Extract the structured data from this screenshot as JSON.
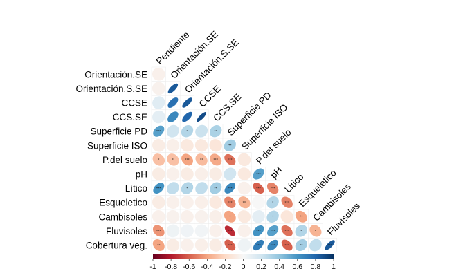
{
  "chart_data": {
    "type": "heatmap",
    "style": "correlation-ellipse-lower-triangle",
    "variables": [
      "Pendiente",
      "Orientación.SE",
      "Orientación.S.SE",
      "CCSE",
      "CCS.SE",
      "Superficie PD",
      "Superficie ISO",
      "P.del suelo",
      "pH",
      "Lítico",
      "Esqueletico",
      "Cambisoles",
      "Fluvisoles",
      "Cobertura veg."
    ],
    "cells": [
      {
        "row": "Orientación.SE",
        "col": "Pendiente",
        "r": -0.05,
        "sig": ""
      },
      {
        "row": "Orientación.S.SE",
        "col": "Pendiente",
        "r": -0.04,
        "sig": ""
      },
      {
        "row": "Orientación.S.SE",
        "col": "Orientación.SE",
        "r": 0.85,
        "sig": ""
      },
      {
        "row": "CCSE",
        "col": "Pendiente",
        "r": 0.12,
        "sig": ""
      },
      {
        "row": "CCSE",
        "col": "Orientación.SE",
        "r": 0.75,
        "sig": ""
      },
      {
        "row": "CCSE",
        "col": "Orientación.S.SE",
        "r": 0.85,
        "sig": ""
      },
      {
        "row": "CCS.SE",
        "col": "Pendiente",
        "r": 0.1,
        "sig": ""
      },
      {
        "row": "CCS.SE",
        "col": "Orientación.SE",
        "r": 0.65,
        "sig": ""
      },
      {
        "row": "CCS.SE",
        "col": "Orientación.S.SE",
        "r": 0.8,
        "sig": ""
      },
      {
        "row": "CCS.SE",
        "col": "CCSE",
        "r": 0.9,
        "sig": ""
      },
      {
        "row": "Superficie PD",
        "col": "Pendiente",
        "r": 0.55,
        "sig": "***"
      },
      {
        "row": "Superficie PD",
        "col": "Orientación.SE",
        "r": 0.2,
        "sig": ""
      },
      {
        "row": "Superficie PD",
        "col": "Orientación.S.SE",
        "r": 0.3,
        "sig": "*"
      },
      {
        "row": "Superficie PD",
        "col": "CCSE",
        "r": 0.22,
        "sig": ""
      },
      {
        "row": "Superficie PD",
        "col": "CCS.SE",
        "r": 0.32,
        "sig": "**"
      },
      {
        "row": "Superficie ISO",
        "col": "Pendiente",
        "r": -0.08,
        "sig": ""
      },
      {
        "row": "Superficie ISO",
        "col": "Orientación.SE",
        "r": -0.06,
        "sig": ""
      },
      {
        "row": "Superficie ISO",
        "col": "Orientación.S.SE",
        "r": -0.1,
        "sig": ""
      },
      {
        "row": "Superficie ISO",
        "col": "CCSE",
        "r": -0.1,
        "sig": ""
      },
      {
        "row": "Superficie ISO",
        "col": "CCS.SE",
        "r": -0.12,
        "sig": ""
      },
      {
        "row": "Superficie ISO",
        "col": "Superficie PD",
        "r": 0.35,
        "sig": "**"
      },
      {
        "row": "P.del suelo",
        "col": "Pendiente",
        "r": -0.3,
        "sig": "*"
      },
      {
        "row": "P.del suelo",
        "col": "Orientación.SE",
        "r": -0.3,
        "sig": "*"
      },
      {
        "row": "P.del suelo",
        "col": "Orientación.S.SE",
        "r": -0.4,
        "sig": "***"
      },
      {
        "row": "P.del suelo",
        "col": "CCSE",
        "r": -0.32,
        "sig": "**"
      },
      {
        "row": "P.del suelo",
        "col": "CCS.SE",
        "r": -0.38,
        "sig": "***"
      },
      {
        "row": "P.del suelo",
        "col": "Superficie PD",
        "r": -0.55,
        "sig": "***"
      },
      {
        "row": "P.del suelo",
        "col": "Superficie ISO",
        "r": -0.1,
        "sig": ""
      },
      {
        "row": "pH",
        "col": "Pendiente",
        "r": -0.08,
        "sig": ""
      },
      {
        "row": "pH",
        "col": "Orientación.SE",
        "r": -0.05,
        "sig": ""
      },
      {
        "row": "pH",
        "col": "Orientación.S.SE",
        "r": -0.08,
        "sig": ""
      },
      {
        "row": "pH",
        "col": "CCSE",
        "r": -0.06,
        "sig": ""
      },
      {
        "row": "pH",
        "col": "CCS.SE",
        "r": -0.08,
        "sig": ""
      },
      {
        "row": "pH",
        "col": "Superficie PD",
        "r": 0.2,
        "sig": ""
      },
      {
        "row": "pH",
        "col": "Superficie ISO",
        "r": -0.1,
        "sig": ""
      },
      {
        "row": "pH",
        "col": "P.del suelo",
        "r": 0.55,
        "sig": "***"
      },
      {
        "row": "Lítico",
        "col": "Pendiente",
        "r": 0.6,
        "sig": "***"
      },
      {
        "row": "Lítico",
        "col": "Orientación.SE",
        "r": 0.25,
        "sig": ""
      },
      {
        "row": "Lítico",
        "col": "Orientación.S.SE",
        "r": 0.3,
        "sig": "*"
      },
      {
        "row": "Lítico",
        "col": "CCSE",
        "r": 0.25,
        "sig": ""
      },
      {
        "row": "Lítico",
        "col": "CCS.SE",
        "r": 0.35,
        "sig": "**"
      },
      {
        "row": "Lítico",
        "col": "Superficie PD",
        "r": 0.65,
        "sig": "***"
      },
      {
        "row": "Lítico",
        "col": "Superficie ISO",
        "r": -0.05,
        "sig": ""
      },
      {
        "row": "Lítico",
        "col": "P.del suelo",
        "r": -0.6,
        "sig": "***"
      },
      {
        "row": "Lítico",
        "col": "pH",
        "r": -0.5,
        "sig": "***"
      },
      {
        "row": "Esqueletico",
        "col": "Pendiente",
        "r": -0.08,
        "sig": ""
      },
      {
        "row": "Esqueletico",
        "col": "Orientación.SE",
        "r": -0.05,
        "sig": ""
      },
      {
        "row": "Esqueletico",
        "col": "Orientación.S.SE",
        "r": -0.05,
        "sig": ""
      },
      {
        "row": "Esqueletico",
        "col": "CCSE",
        "r": -0.06,
        "sig": ""
      },
      {
        "row": "Esqueletico",
        "col": "CCS.SE",
        "r": -0.1,
        "sig": ""
      },
      {
        "row": "Esqueletico",
        "col": "Superficie PD",
        "r": -0.5,
        "sig": "***"
      },
      {
        "row": "Esqueletico",
        "col": "Superficie ISO",
        "r": -0.35,
        "sig": "**"
      },
      {
        "row": "Esqueletico",
        "col": "P.del suelo",
        "r": 0.0,
        "sig": ""
      },
      {
        "row": "Esqueletico",
        "col": "pH",
        "r": 0.3,
        "sig": "*"
      },
      {
        "row": "Esqueletico",
        "col": "Lítico",
        "r": -0.5,
        "sig": "***"
      },
      {
        "row": "Cambisoles",
        "col": "Pendiente",
        "r": -0.05,
        "sig": ""
      },
      {
        "row": "Cambisoles",
        "col": "Orientación.SE",
        "r": -0.04,
        "sig": ""
      },
      {
        "row": "Cambisoles",
        "col": "Orientación.S.SE",
        "r": -0.05,
        "sig": ""
      },
      {
        "row": "Cambisoles",
        "col": "CCSE",
        "r": -0.04,
        "sig": ""
      },
      {
        "row": "Cambisoles",
        "col": "CCS.SE",
        "r": -0.06,
        "sig": ""
      },
      {
        "row": "Cambisoles",
        "col": "Superficie PD",
        "r": -0.4,
        "sig": "*"
      },
      {
        "row": "Cambisoles",
        "col": "Superficie ISO",
        "r": -0.1,
        "sig": ""
      },
      {
        "row": "Cambisoles",
        "col": "P.del suelo",
        "r": 0.1,
        "sig": ""
      },
      {
        "row": "Cambisoles",
        "col": "pH",
        "r": 0.3,
        "sig": "*"
      },
      {
        "row": "Cambisoles",
        "col": "Lítico",
        "r": -0.12,
        "sig": ""
      },
      {
        "row": "Cambisoles",
        "col": "Esqueletico",
        "r": -0.4,
        "sig": "**"
      },
      {
        "row": "Fluvisoles",
        "col": "Pendiente",
        "r": -0.45,
        "sig": "***"
      },
      {
        "row": "Fluvisoles",
        "col": "Orientación.SE",
        "r": 0.05,
        "sig": ""
      },
      {
        "row": "Fluvisoles",
        "col": "Orientación.S.SE",
        "r": 0.04,
        "sig": ""
      },
      {
        "row": "Fluvisoles",
        "col": "CCSE",
        "r": 0.03,
        "sig": ""
      },
      {
        "row": "Fluvisoles",
        "col": "CCS.SE",
        "r": -0.05,
        "sig": ""
      },
      {
        "row": "Fluvisoles",
        "col": "Superficie PD",
        "r": -0.75,
        "sig": "***"
      },
      {
        "row": "Fluvisoles",
        "col": "Superficie ISO",
        "r": -0.05,
        "sig": ""
      },
      {
        "row": "Fluvisoles",
        "col": "P.del suelo",
        "r": 0.6,
        "sig": "***"
      },
      {
        "row": "Fluvisoles",
        "col": "pH",
        "r": 0.55,
        "sig": "***"
      },
      {
        "row": "Fluvisoles",
        "col": "Lítico",
        "r": -0.55,
        "sig": "***"
      },
      {
        "row": "Fluvisoles",
        "col": "Esqueletico",
        "r": 0.3,
        "sig": "*"
      },
      {
        "row": "Fluvisoles",
        "col": "Cambisoles",
        "r": -0.35,
        "sig": "*"
      },
      {
        "row": "Cobertura veg.",
        "col": "Pendiente",
        "r": -0.4,
        "sig": "**"
      },
      {
        "row": "Cobertura veg.",
        "col": "Orientación.SE",
        "r": -0.08,
        "sig": ""
      },
      {
        "row": "Cobertura veg.",
        "col": "Orientación.S.SE",
        "r": -0.05,
        "sig": ""
      },
      {
        "row": "Cobertura veg.",
        "col": "CCSE",
        "r": -0.06,
        "sig": ""
      },
      {
        "row": "Cobertura veg.",
        "col": "CCS.SE",
        "r": -0.08,
        "sig": ""
      },
      {
        "row": "Cobertura veg.",
        "col": "Superficie PD",
        "r": -0.6,
        "sig": "***"
      },
      {
        "row": "Cobertura veg.",
        "col": "Superficie ISO",
        "r": 0.05,
        "sig": ""
      },
      {
        "row": "Cobertura veg.",
        "col": "P.del suelo",
        "r": 0.7,
        "sig": "***"
      },
      {
        "row": "Cobertura veg.",
        "col": "pH",
        "r": 0.65,
        "sig": "***"
      },
      {
        "row": "Cobertura veg.",
        "col": "Lítico",
        "r": -0.6,
        "sig": "***"
      },
      {
        "row": "Cobertura veg.",
        "col": "Esqueletico",
        "r": 0.35,
        "sig": "**"
      },
      {
        "row": "Cobertura veg.",
        "col": "Cambisoles",
        "r": 0.25,
        "sig": ""
      },
      {
        "row": "Cobertura veg.",
        "col": "Fluvisoles",
        "r": 0.85,
        "sig": "***"
      }
    ],
    "colorbar": {
      "range": [
        -1,
        1
      ],
      "ticks": [
        "-1",
        "-0.8",
        "-0.6",
        "-0.4",
        "-0.2",
        "0",
        "0.2",
        "0.4",
        "0.6",
        "0.8",
        "1"
      ]
    },
    "colors": {
      "negative_strong": "#67001f",
      "negative_mid": "#d6604d",
      "neutral": "#f7f7f7",
      "positive_mid": "#4393c3",
      "positive_strong": "#053061"
    }
  }
}
